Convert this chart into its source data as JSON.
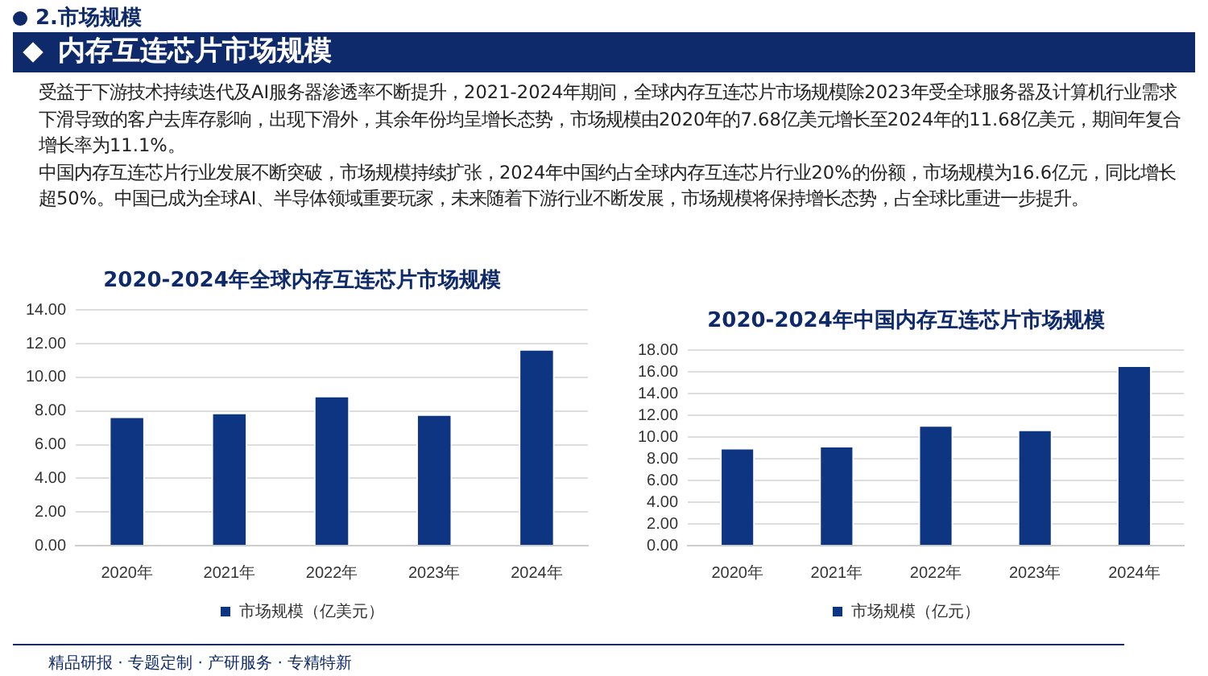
{
  "chart_data": [
    {
      "type": "other",
      "subtitle": "2.市场规模",
      "title": "内存互连芯片市场规模",
      "annotations": [
        "受益于下游技术持续迭代及AI服务器渗透率不断提升，2021-2024年期间，全球内存互连芯片市场规模除2023年受全球服务器及计算机行业需求下滑导致的客户去库存影响，出现下滑外，其余年份均呈增长态势，市场规模由2020年的7.68亿美元增长至2024年的11.68亿美元，期间年复合增长率为11.1%。",
        "中国内存互连芯片行业发展不断突破，市场规模持续扩张，2024年中国约占全球内存互连芯片行业20%的份额，市场规模为16.6亿元，同比增长超50%。中国已成为全球AI、半导体领域重要玩家，未来随着下游行业不断发展，市场规模将保持增长态势，占全球比重进一步提升。",
        "精品研报 · 专题定制 · 产研服务 · 专精特新"
      ]
    },
    {
      "type": "bar",
      "title": "2020-2024年全球内存互连芯片市场规模",
      "categories": [
        "2020年",
        "2021年",
        "2022年",
        "2023年",
        "2024年"
      ],
      "series": [
        {
          "name": "市场规模（亿美元）",
          "color": "#0e3581",
          "values": [
            7.68,
            7.9,
            8.9,
            7.8,
            11.68
          ]
        }
      ],
      "ylim": [
        0,
        14
      ],
      "yticks": [
        {
          "value": 0,
          "label": "0.00"
        },
        {
          "value": 2,
          "label": "2.00"
        },
        {
          "value": 4,
          "label": "4.00"
        },
        {
          "value": 6,
          "label": "6.00"
        },
        {
          "value": 8,
          "label": "8.00"
        },
        {
          "value": 10,
          "label": "10.00"
        },
        {
          "value": 12,
          "label": "12.00"
        },
        {
          "value": 14,
          "label": "14.00"
        }
      ],
      "grid": "y",
      "legend": "bottom"
    },
    {
      "type": "bar",
      "title": "2020-2024年中国内存互连芯片市场规模",
      "categories": [
        "2020年",
        "2021年",
        "2022年",
        "2023年",
        "2024年"
      ],
      "series": [
        {
          "name": "市场规模（亿元）",
          "color": "#0e3581",
          "values": [
            9.0,
            9.2,
            11.1,
            10.7,
            16.6
          ]
        }
      ],
      "ylim": [
        0,
        18
      ],
      "yticks": [
        {
          "value": 0,
          "label": "0.00"
        },
        {
          "value": 2,
          "label": "2.00"
        },
        {
          "value": 4,
          "label": "4.00"
        },
        {
          "value": 6,
          "label": "6.00"
        },
        {
          "value": 8,
          "label": "8.00"
        },
        {
          "value": 10,
          "label": "10.00"
        },
        {
          "value": 12,
          "label": "12.00"
        },
        {
          "value": 14,
          "label": "14.00"
        },
        {
          "value": 16,
          "label": "16.00"
        },
        {
          "value": 18,
          "label": "18.00"
        }
      ],
      "grid": "y",
      "legend": "bottom"
    }
  ]
}
